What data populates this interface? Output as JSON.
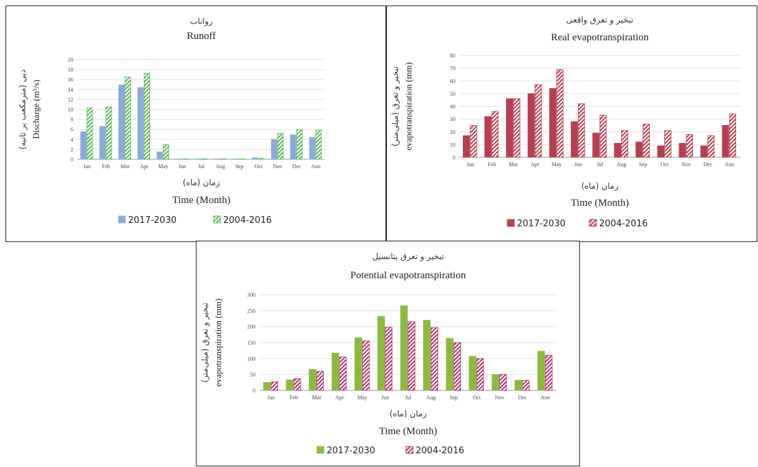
{
  "months": [
    "Jan",
    "Feb",
    "Mar",
    "Apr",
    "May",
    "Jun",
    "Jul",
    "Aug",
    "Sep",
    "Oct",
    "Nov",
    "Dec",
    "Ann"
  ],
  "chart_data": [
    {
      "type": "bar",
      "title_fa": "رواناب",
      "title": "Runoff",
      "ylabel_fa": "دبی (مترمکعب بر ثانیه)",
      "ylabel": "Discharge (m³/s)",
      "xlabel_fa": "زمان (ماه)",
      "xlabel": "Time (Month)",
      "ylim": [
        0,
        20
      ],
      "yticks": [
        0,
        2,
        4,
        6,
        8,
        10,
        12,
        14,
        16,
        18,
        20
      ],
      "categories": [
        "Jan",
        "Feb",
        "Mar",
        "Apr",
        "May",
        "Jun",
        "Jul",
        "Aug",
        "Sep",
        "Oct",
        "Nov",
        "Dec",
        "Ann"
      ],
      "series": [
        {
          "name": "2017-2030",
          "color": "#8eaadb",
          "pattern": "solid",
          "values": [
            5.5,
            6.6,
            14.9,
            14.4,
            1.5,
            0.1,
            0.1,
            0.1,
            0.1,
            0.3,
            4.0,
            4.9,
            4.4
          ]
        },
        {
          "name": "2004-2016",
          "color": "#5cb85c",
          "pattern": "hatch",
          "values": [
            10.3,
            10.5,
            16.5,
            17.2,
            3.0,
            0.1,
            0.1,
            0.1,
            0.1,
            0.2,
            5.2,
            6.0,
            5.8
          ]
        }
      ],
      "legend": "bottom"
    },
    {
      "type": "bar",
      "title_fa": "تبخیر و تعرق واقعی",
      "title": "Real evapotranspiration",
      "ylabel_fa": "تبخیر و تعرق (میلی‌متر)",
      "ylabel": "evapotranspiration (mm)",
      "xlabel_fa": "زمان (ماه)",
      "xlabel": "Time (Month)",
      "ylim": [
        0,
        80
      ],
      "yticks": [
        0,
        10,
        20,
        30,
        40,
        50,
        60,
        70,
        80
      ],
      "categories": [
        "Jan",
        "Feb",
        "Mar",
        "Apr",
        "May",
        "Jun",
        "Jul",
        "Aug",
        "Sep",
        "Oct",
        "Nov",
        "Dec",
        "Ann"
      ],
      "series": [
        {
          "name": "2017-2030",
          "color": "#b5404f",
          "pattern": "solid",
          "values": [
            17,
            32,
            46,
            50,
            54,
            28,
            19,
            11,
            12,
            9,
            11,
            9,
            25
          ]
        },
        {
          "name": "2004-2016",
          "color": "#b5404f",
          "pattern": "hatch",
          "values": [
            25,
            36,
            46,
            57,
            69,
            42,
            33,
            21,
            26,
            21,
            18,
            17,
            34
          ]
        }
      ],
      "legend": "bottom"
    },
    {
      "type": "bar",
      "title_fa": "تبخیر و تعرق پتانسیل",
      "title": "Potential evapotranspiration",
      "ylabel_fa": "تبخیر و تعرق (میلی‌متر)",
      "ylabel": "evapotranspiration (mm)",
      "xlabel_fa": "زمان (ماه)",
      "xlabel": "Time (Month)",
      "ylim": [
        0,
        300
      ],
      "yticks": [
        0,
        50,
        100,
        150,
        200,
        250,
        300
      ],
      "categories": [
        "Jan",
        "Feb",
        "Mar",
        "Apr",
        "May",
        "Jun",
        "Jul",
        "Aug",
        "Sep",
        "Oct",
        "Nov",
        "Dec",
        "Ann"
      ],
      "series": [
        {
          "name": "2017-2030",
          "color": "#8db943",
          "pattern": "solid",
          "values": [
            25,
            33,
            66,
            117,
            165,
            232,
            265,
            220,
            163,
            107,
            50,
            32,
            123
          ]
        },
        {
          "name": "2004-2016",
          "color": "#b0356e",
          "pattern": "hatch",
          "values": [
            27,
            37,
            60,
            105,
            155,
            198,
            215,
            197,
            150,
            100,
            50,
            32,
            110
          ]
        }
      ],
      "legend": "bottom"
    }
  ]
}
